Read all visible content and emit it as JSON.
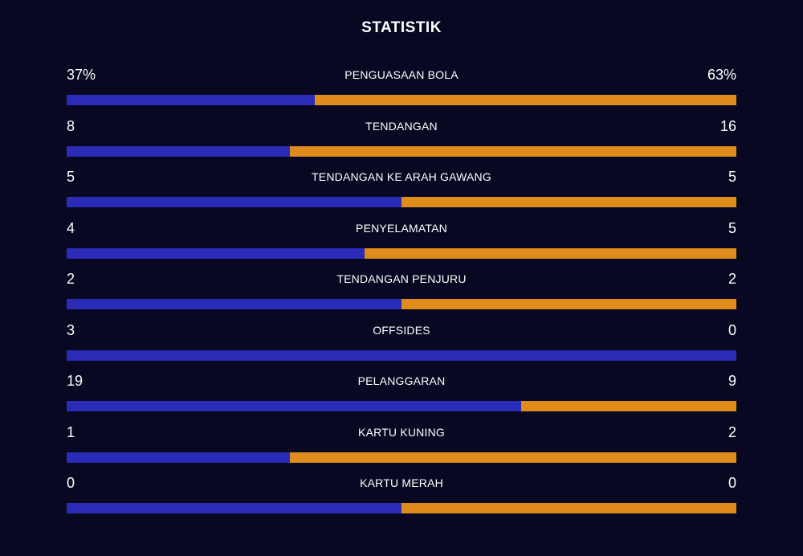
{
  "title": "STATISTIK",
  "colors": {
    "background": "#080822",
    "home": "#2a2cb8",
    "away": "#e08c1c",
    "text": "#ffffff"
  },
  "stats": [
    {
      "label": "PENGUASAAN BOLA",
      "home": "37%",
      "away": "63%",
      "home_share": 0.37
    },
    {
      "label": "TENDANGAN",
      "home": "8",
      "away": "16",
      "home_share": 0.3333
    },
    {
      "label": "TENDANGAN KE ARAH GAWANG",
      "home": "5",
      "away": "5",
      "home_share": 0.5
    },
    {
      "label": "PENYELAMATAN",
      "home": "4",
      "away": "5",
      "home_share": 0.4444
    },
    {
      "label": "TENDANGAN PENJURU",
      "home": "2",
      "away": "2",
      "home_share": 0.5
    },
    {
      "label": "OFFSIDES",
      "home": "3",
      "away": "0",
      "home_share": 1.0
    },
    {
      "label": "PELANGGARAN",
      "home": "19",
      "away": "9",
      "home_share": 0.6786
    },
    {
      "label": "KARTU KUNING",
      "home": "1",
      "away": "2",
      "home_share": 0.3333
    },
    {
      "label": "KARTU MERAH",
      "home": "0",
      "away": "0",
      "home_share": 0.5
    }
  ]
}
